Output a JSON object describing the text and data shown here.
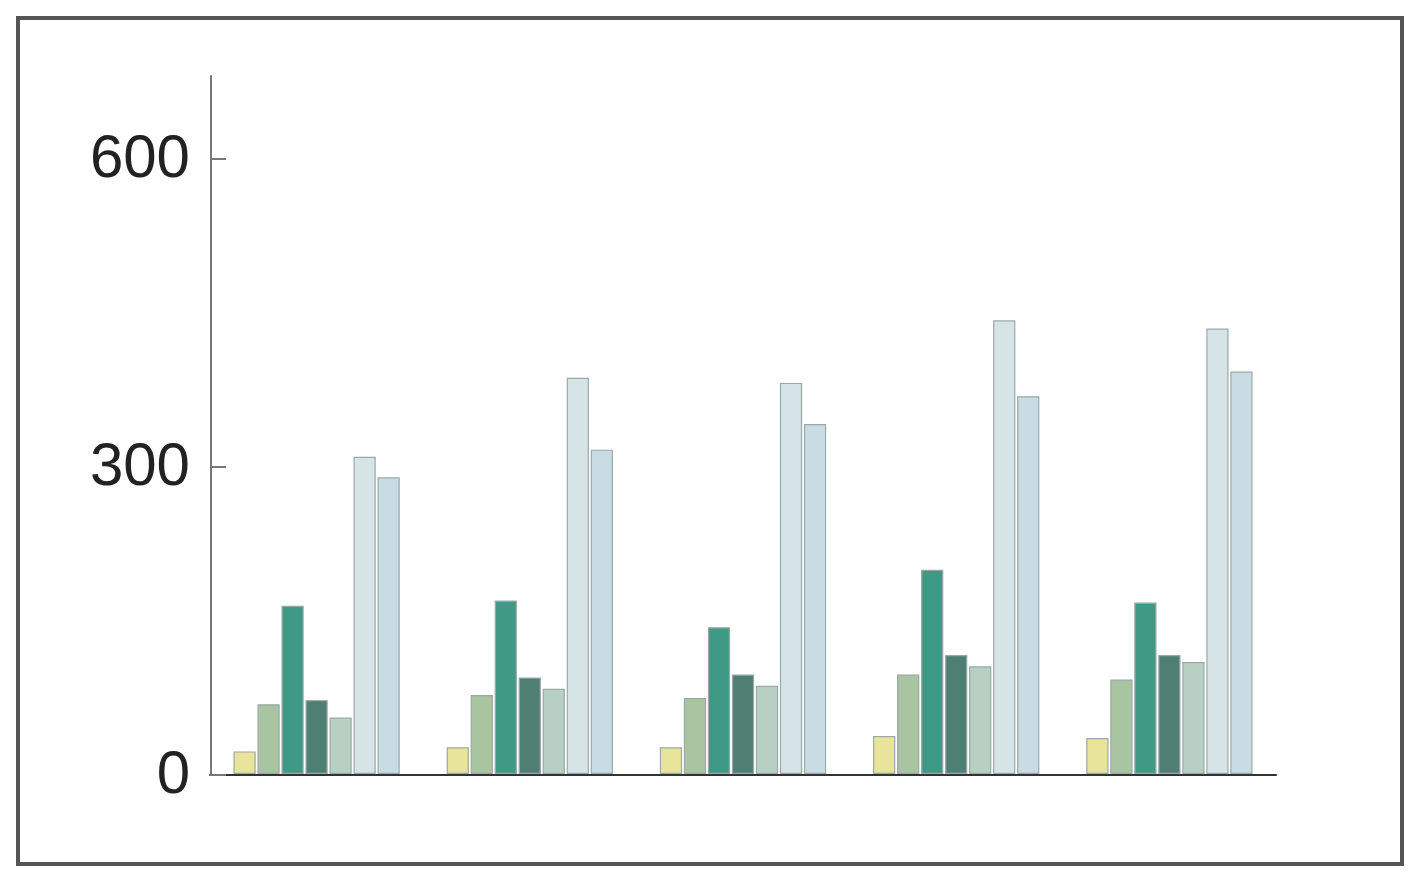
{
  "chart_data": {
    "type": "bar",
    "categories": [
      null,
      null,
      null,
      null,
      null
    ],
    "series": [
      {
        "color": "#e8e49a",
        "values": [
          22,
          26,
          26,
          37,
          35
        ]
      },
      {
        "color": "#a9c4a0",
        "values": [
          68,
          77,
          74,
          97,
          92
        ]
      },
      {
        "color": "#3e9a85",
        "values": [
          164,
          169,
          143,
          199,
          167
        ]
      },
      {
        "color": "#4f7f72",
        "values": [
          72,
          94,
          97,
          116,
          116
        ]
      },
      {
        "color": "#b8d0c4",
        "values": [
          55,
          83,
          86,
          105,
          109
        ]
      },
      {
        "color": "#d6e4e8",
        "values": [
          309,
          386,
          381,
          442,
          434
        ]
      },
      {
        "color": "#c9dce4",
        "values": [
          289,
          316,
          341,
          368,
          392
        ]
      }
    ],
    "ylim": [
      0,
      680
    ],
    "yticks": [
      0,
      300,
      600
    ],
    "grid": false
  }
}
